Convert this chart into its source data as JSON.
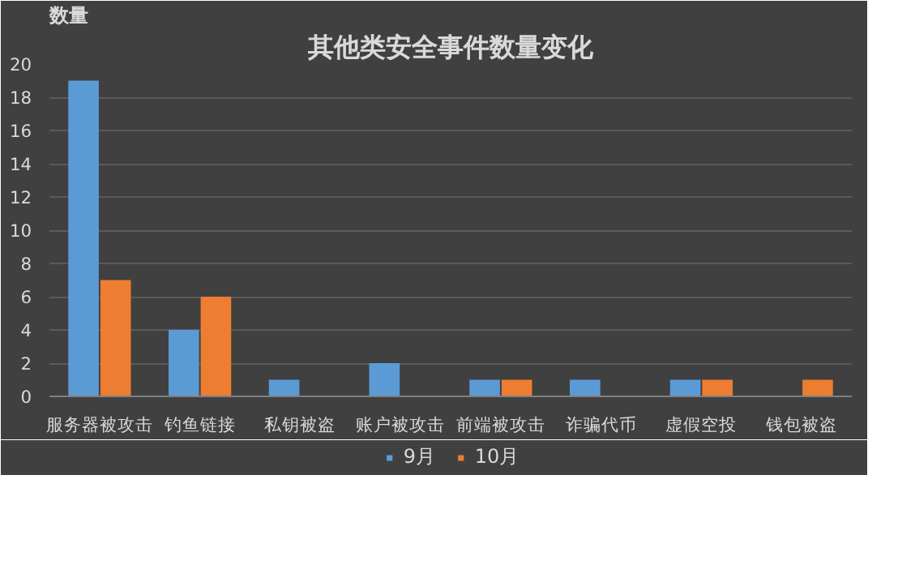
{
  "chart_data": {
    "type": "bar",
    "title": "其他类安全事件数量变化",
    "ylabel": "数量",
    "categories": [
      "服务器被攻击",
      "钓鱼链接",
      "私钥被盗",
      "账户被攻击",
      "前端被攻击",
      "诈骗代币",
      "虚假空投",
      "钱包被盗"
    ],
    "series": [
      {
        "name": "9月",
        "color": "#5b9bd5",
        "values": [
          19,
          4,
          1,
          2,
          1,
          1,
          1,
          0
        ]
      },
      {
        "name": "10月",
        "color": "#ed7d31",
        "values": [
          7,
          6,
          0,
          0,
          1,
          0,
          1,
          1
        ]
      }
    ],
    "ylim": [
      0,
      20
    ],
    "yticks": [
      0,
      2,
      4,
      6,
      8,
      10,
      12,
      14,
      16,
      18,
      20
    ],
    "grid": "y",
    "legend": "bottom"
  }
}
